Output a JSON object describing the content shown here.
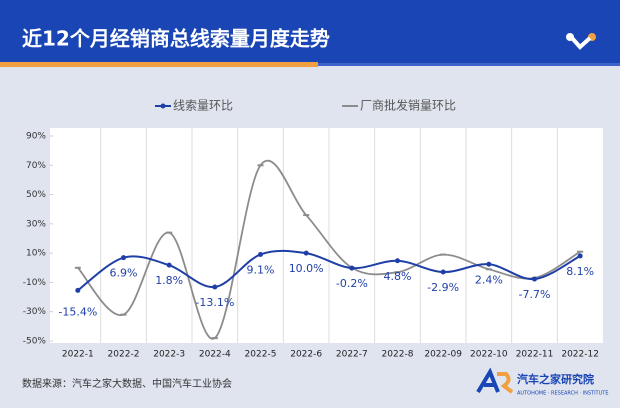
{
  "chart_data": {
    "type": "line",
    "title": "近12个月经销商总线索量月度走势",
    "categories": [
      "2022-1",
      "2022-2",
      "2022-3",
      "2022-4",
      "2022-5",
      "2022-6",
      "2022-7",
      "2022-8",
      "2022-09",
      "2022-10",
      "2022-11",
      "2022-12"
    ],
    "series": [
      {
        "name": "线索量环比",
        "color": "#1f3fa8",
        "values": [
          -15.4,
          6.9,
          1.8,
          -13.1,
          9.1,
          10.0,
          -0.2,
          4.8,
          -2.9,
          2.4,
          -7.7,
          8.1
        ],
        "value_labels": [
          "-15.4%",
          "6.9%",
          "1.8%",
          "-13.1%",
          "9.1%",
          "10.0%",
          "-0.2%",
          "4.8%",
          "-2.9%",
          "2.4%",
          "-7.7%",
          "8.1%"
        ]
      },
      {
        "name": "厂商批发销量环比",
        "color": "#8c8c8c",
        "values": [
          0,
          -32,
          24,
          -48,
          70,
          36,
          0,
          -3,
          9,
          -1,
          -7,
          11
        ]
      }
    ],
    "ylim": [
      -50,
      90
    ],
    "yticks": [
      {
        "value": -50,
        "label": "-50%"
      },
      {
        "value": -30,
        "label": "-30%"
      },
      {
        "value": -10,
        "label": "-10%"
      },
      {
        "value": 10,
        "label": "10%"
      },
      {
        "value": 30,
        "label": "30%"
      },
      {
        "value": 50,
        "label": "50%"
      },
      {
        "value": 70,
        "label": "70%"
      },
      {
        "value": 90,
        "label": "90%"
      }
    ],
    "grid": true,
    "legend": "top"
  },
  "source": "数据来源：汽车之家大数据、中国汽车工业协会",
  "brand": {
    "name": "汽车之家研究院",
    "tagline": "AUTOHOME · RESEARCH · INSTITUTE"
  }
}
